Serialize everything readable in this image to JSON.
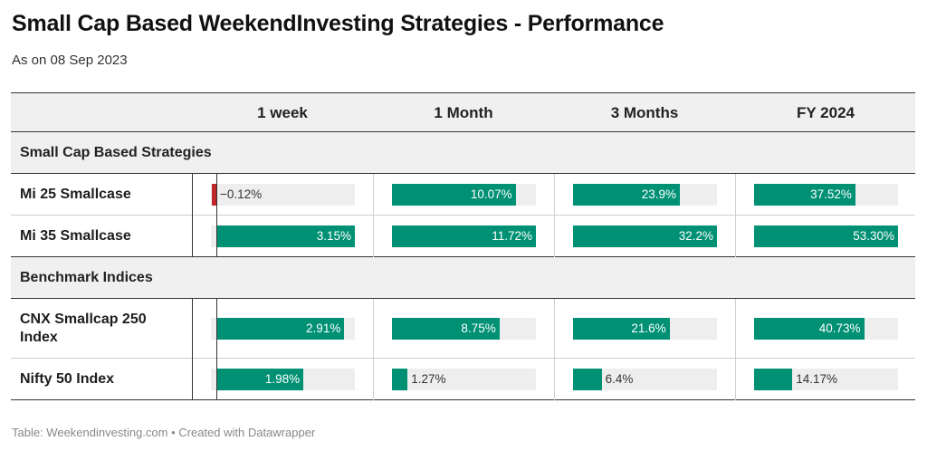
{
  "title": "Small Cap Based WeekendInvesting Strategies - Performance",
  "subtitle": "As on 08 Sep 2023",
  "footer": "Table: Weekendinvesting.com • Created with Datawrapper",
  "colors": {
    "positive": "#009175",
    "negative": "#c0282d",
    "track": "#eeeeee"
  },
  "columns": [
    "1 week",
    "1 Month",
    "3 Months",
    "FY 2024"
  ],
  "chart_data": {
    "type": "table",
    "columns": [
      "1 week",
      "1 Month",
      "3 Months",
      "FY 2024"
    ],
    "column_max": [
      3.15,
      11.72,
      32.2,
      53.3
    ],
    "groups": [
      {
        "name": "Small Cap Based Strategies",
        "rows": [
          {
            "name": "Mi 25 Smallcase",
            "values": [
              -0.12,
              10.07,
              23.9,
              37.52
            ],
            "labels": [
              "−0.12%",
              "10.07%",
              "23.9%",
              "37.52%"
            ]
          },
          {
            "name": "Mi 35 Smallcase",
            "values": [
              3.15,
              11.72,
              32.2,
              53.3
            ],
            "labels": [
              "3.15%",
              "11.72%",
              "32.2%",
              "53.30%"
            ]
          }
        ]
      },
      {
        "name": "Benchmark Indices",
        "rows": [
          {
            "name": "CNX Smallcap 250 Index",
            "values": [
              2.91,
              8.75,
              21.6,
              40.73
            ],
            "labels": [
              "2.91%",
              "8.75%",
              "21.6%",
              "40.73%"
            ]
          },
          {
            "name": "Nifty 50 Index",
            "values": [
              1.98,
              1.27,
              6.4,
              14.17
            ],
            "labels": [
              "1.98%",
              "1.27%",
              "6.4%",
              "14.17%"
            ]
          }
        ]
      }
    ]
  }
}
